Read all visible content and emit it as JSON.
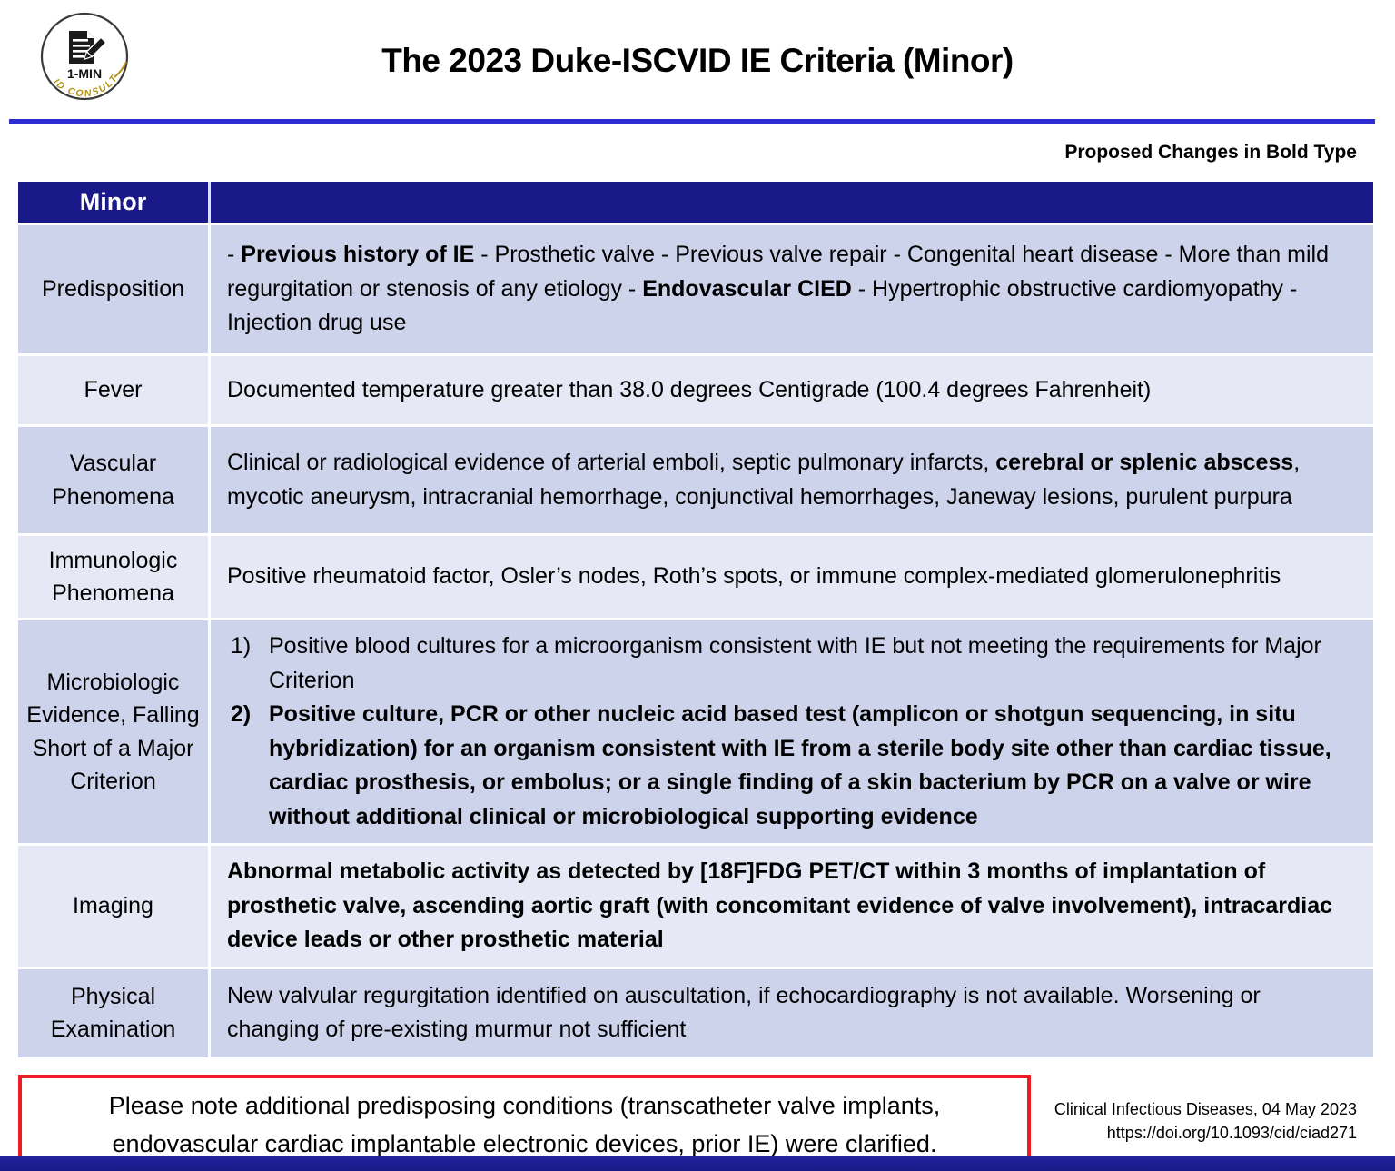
{
  "colors": {
    "navy": "#191989",
    "line_blue": "#2d2bd2",
    "row_dark": "#ccd3ea",
    "row_light": "#e6e9f5",
    "red": "#ec1c24",
    "gold": "#b3920f"
  },
  "logo": {
    "badge_line": "1-MIN",
    "arc_text": "ID CONSULT"
  },
  "header": {
    "title": "The 2023 Duke-ISCVID IE Criteria (Minor)",
    "bold_note": "Proposed Changes in Bold Type"
  },
  "table": {
    "header_label": "Minor",
    "rows": [
      {
        "label": "Predisposition",
        "content": [
          {
            "bold": false,
            "text": "- "
          },
          {
            "bold": true,
            "text": "Previous history of IE"
          },
          {
            "bold": false,
            "text": " - Prosthetic valve - Previous valve repair - Congenital heart disease - More than mild regurgitation or stenosis of any etiology - "
          },
          {
            "bold": true,
            "text": "Endovascular CIED"
          },
          {
            "bold": false,
            "text": " - Hypertrophic obstructive cardiomyopathy - Injection drug use"
          }
        ]
      },
      {
        "label": "Fever",
        "content": [
          {
            "bold": false,
            "text": "Documented temperature greater than 38.0 degrees Centigrade (100.4 degrees Fahrenheit)"
          }
        ]
      },
      {
        "label": "Vascular Phenomena",
        "content": [
          {
            "bold": false,
            "text": "Clinical or radiological evidence of arterial emboli, septic pulmonary infarcts, "
          },
          {
            "bold": true,
            "text": "cerebral or splenic abscess"
          },
          {
            "bold": false,
            "text": ", mycotic aneurysm, intracranial hemorrhage, conjunctival hemorrhages, Janeway lesions, purulent purpura"
          }
        ]
      },
      {
        "label": "Immunologic Phenomena",
        "content": [
          {
            "bold": false,
            "text": "Positive rheumatoid factor, Osler’s nodes, Roth’s spots, or immune complex-mediated glomerulonephritis"
          }
        ]
      },
      {
        "label": "Microbiologic Evidence, Falling Short of a Major Criterion",
        "list": [
          {
            "marker": "1)",
            "bold": false,
            "text": "Positive blood cultures for a microorganism consistent with IE but not meeting the requirements for Major Criterion"
          },
          {
            "marker": "2)",
            "bold": true,
            "text": "Positive culture, PCR or other nucleic acid based test (amplicon or shotgun sequencing, in situ hybridization) for an organism consistent with IE from a sterile body site other than cardiac tissue, cardiac prosthesis, or embolus; or a single finding of a skin bacterium by PCR on a valve or wire without additional clinical or microbiological supporting evidence"
          }
        ]
      },
      {
        "label": "Imaging",
        "content": [
          {
            "bold": true,
            "text": "Abnormal metabolic activity as detected by [18F]FDG PET/CT within 3 months of implantation of prosthetic valve, ascending aortic graft (with concomitant evidence of valve involvement), intracardiac device leads or other prosthetic material"
          }
        ]
      },
      {
        "label": "Physical Examination",
        "content": [
          {
            "bold": false,
            "text": "New valvular regurgitation identified on auscultation, if echocardiography is not available. Worsening or changing of pre-existing murmur not sufficient"
          }
        ]
      }
    ]
  },
  "footer": {
    "callout": "Please note additional predisposing conditions (transcatheter valve implants, endovascular cardiac implantable electronic devices, prior IE) were clarified.",
    "citation": [
      "Clinical Infectious Diseases, 04 May 2023",
      "https://doi.org/10.1093/cid/ciad271"
    ]
  }
}
